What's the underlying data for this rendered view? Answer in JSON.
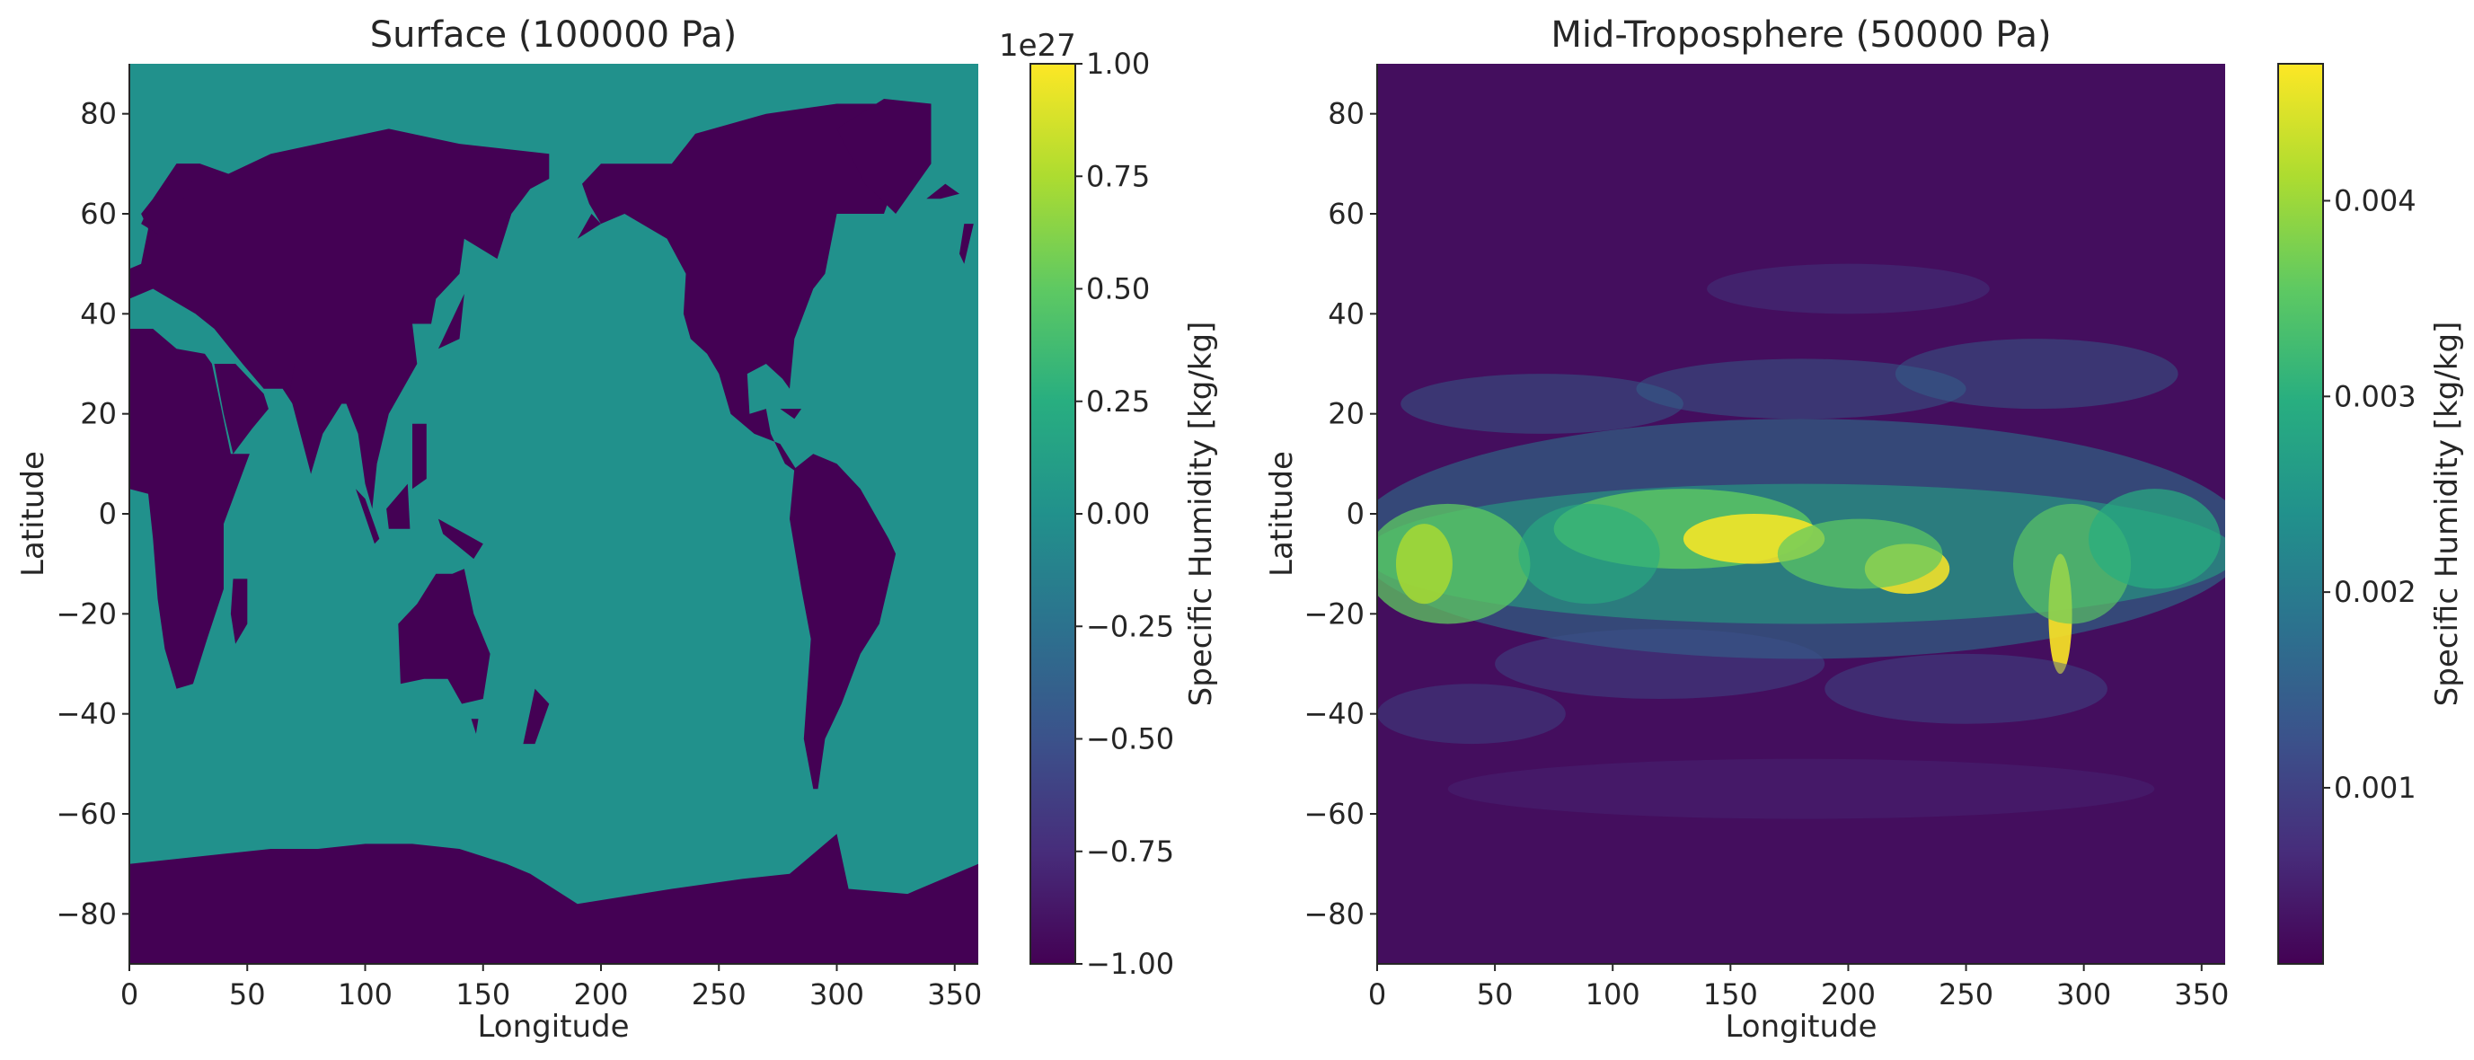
{
  "chart_data": [
    {
      "type": "heatmap",
      "title": "Surface (100000 Pa)",
      "xlabel": "Longitude",
      "ylabel": "Latitude",
      "xlim": [
        0,
        360
      ],
      "ylim": [
        -90,
        90
      ],
      "xticks": [
        0,
        50,
        100,
        150,
        200,
        250,
        300,
        350
      ],
      "yticks": [
        -80,
        -60,
        -40,
        -20,
        0,
        20,
        40,
        60,
        80
      ],
      "colormap": "viridis",
      "pattern": "land-sea mask",
      "land_value": -1e+27,
      "ocean_value": 0,
      "colors": {
        "land": "#440154",
        "ocean": "#21918c"
      },
      "colorbar": {
        "label": "Specific Humidity [kg/kg]",
        "multiplier": "1e27",
        "vmin": -1.0,
        "vmax": 1.0,
        "ticks": [
          "−1.00",
          "−0.75",
          "−0.50",
          "−0.25",
          "0.00",
          "0.25",
          "0.50",
          "0.75",
          "1.00"
        ]
      }
    },
    {
      "type": "heatmap",
      "title": "Mid-Troposphere (50000 Pa)",
      "xlabel": "Longitude",
      "ylabel": "Latitude",
      "xlim": [
        0,
        360
      ],
      "ylim": [
        -90,
        90
      ],
      "xticks": [
        0,
        50,
        100,
        150,
        200,
        250,
        300,
        350
      ],
      "yticks": [
        -80,
        -60,
        -40,
        -20,
        0,
        20,
        40,
        60,
        80
      ],
      "colormap": "viridis",
      "pattern": "tropical moisture band",
      "max_near": [
        {
          "lon": 160,
          "lat": -5
        },
        {
          "lon": 225,
          "lat": -12
        },
        {
          "lon": 290,
          "lat": -22
        }
      ],
      "colorbar": {
        "label": "Specific Humidity [kg/kg]",
        "vmin": 0.0001,
        "vmax": 0.0047,
        "ticks": [
          "0.001",
          "0.002",
          "0.003",
          "0.004"
        ]
      }
    }
  ]
}
